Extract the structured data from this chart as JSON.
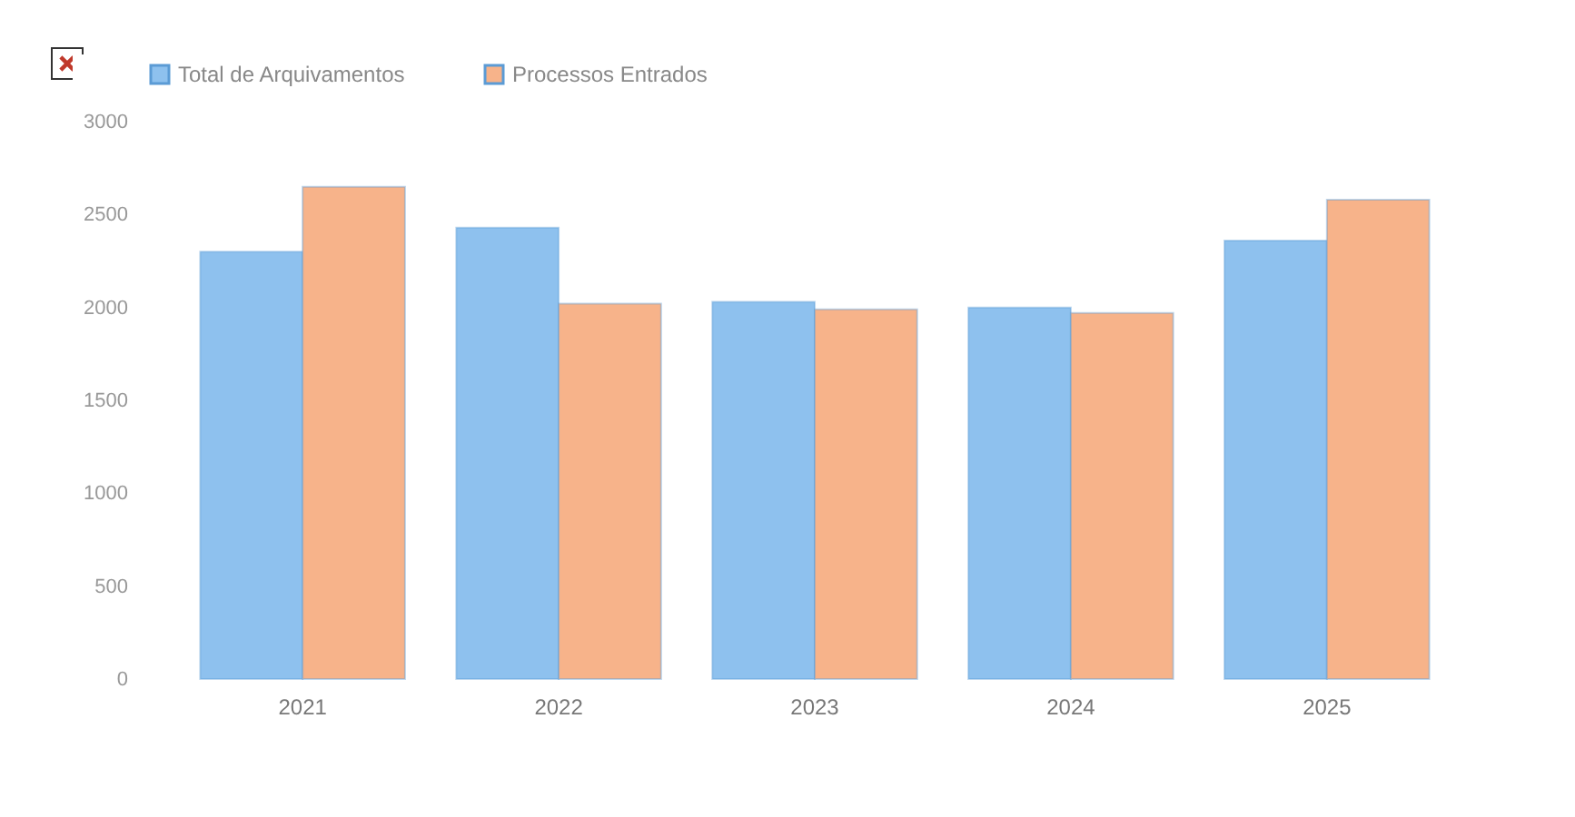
{
  "chart_data": {
    "type": "bar",
    "categories": [
      "2021",
      "2022",
      "2023",
      "2024",
      "2025"
    ],
    "series": [
      {
        "name": "Total de Arquivamentos",
        "color": "#8ec1ee",
        "values": [
          2300,
          2430,
          2030,
          2000,
          2360
        ]
      },
      {
        "name": "Processos Entrados",
        "color": "#f7b38a",
        "values": [
          2650,
          2020,
          1990,
          1970,
          2580
        ]
      }
    ],
    "ylim": [
      0,
      3000
    ],
    "yticks": [
      0,
      500,
      1000,
      1500,
      2000,
      2500,
      3000
    ],
    "grid": false,
    "legend": "top"
  }
}
